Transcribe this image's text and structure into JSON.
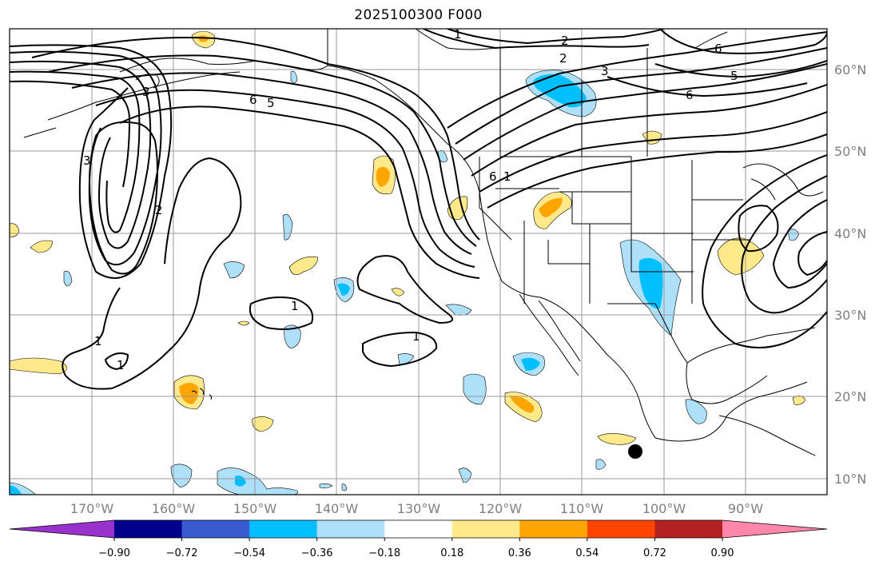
{
  "title": "2025100300 F000",
  "lat_labels": [
    "60°N",
    "50°N",
    "40°N",
    "30°N",
    "20°N",
    "10°N"
  ],
  "lon_labels": [
    "170°W",
    "160°W",
    "150°W",
    "140°W",
    "130°W",
    "120°W",
    "110°W",
    "100°W",
    "90°W"
  ],
  "colorbar": {
    "tick_labels": [
      "−0.90",
      "−0.72",
      "−0.54",
      "−0.36",
      "−0.18",
      "0.18",
      "0.36",
      "0.54",
      "0.72",
      "0.90"
    ],
    "colors": [
      "#9932cc",
      "#00008b",
      "#3a5bd0",
      "#00bfff",
      "#aee0fa",
      "#ffffff",
      "#ffe98a",
      "#ffa500",
      "#ff4500",
      "#b22222",
      "#ff88aa"
    ]
  },
  "contour_labels": [
    "1",
    "2",
    "3",
    "6",
    "5",
    "6",
    "1",
    "2",
    "3",
    "6",
    "5",
    "6",
    "1",
    "1",
    "1",
    "2",
    "3",
    "1"
  ],
  "marker": "filled-circle"
}
